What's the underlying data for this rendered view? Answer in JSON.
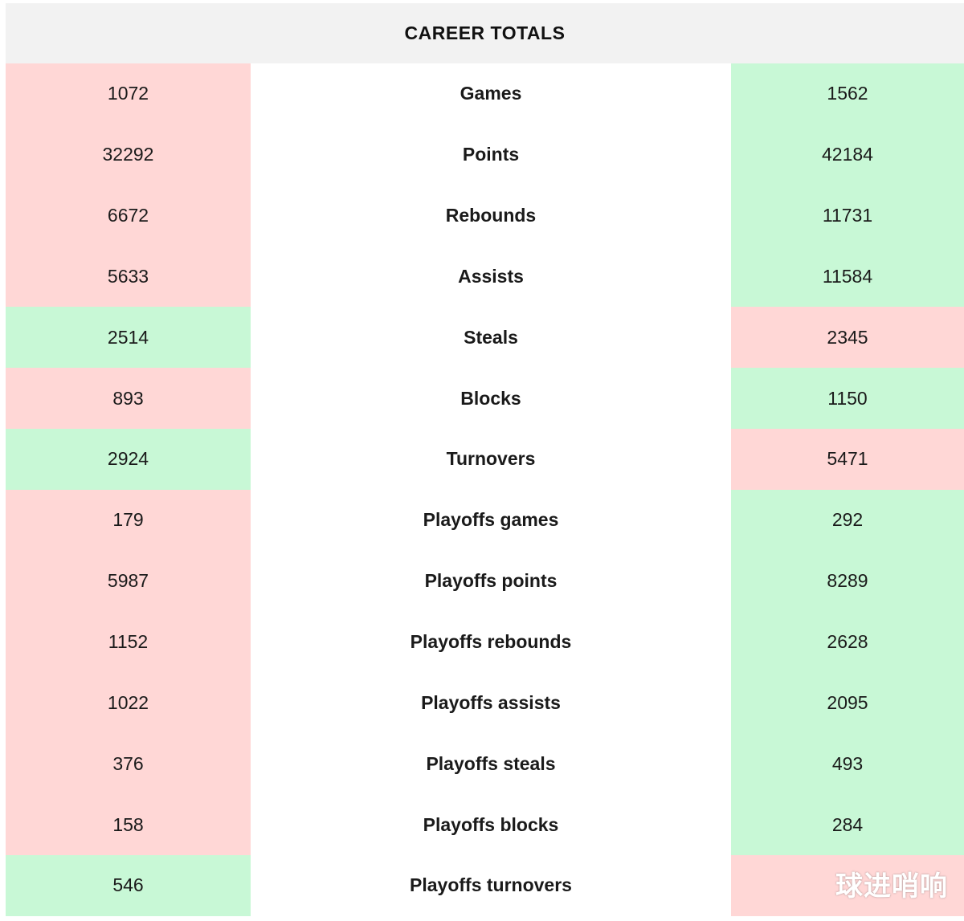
{
  "header": {
    "title": "CAREER TOTALS"
  },
  "colors": {
    "lower": "#ffd7d6",
    "higher": "#c8f8d6",
    "header_bg": "#f2f2f2"
  },
  "rows": [
    {
      "stat": "Games",
      "left": "1072",
      "right": "1562",
      "left_status": "lose",
      "right_status": "win"
    },
    {
      "stat": "Points",
      "left": "32292",
      "right": "42184",
      "left_status": "lose",
      "right_status": "win"
    },
    {
      "stat": "Rebounds",
      "left": "6672",
      "right": "11731",
      "left_status": "lose",
      "right_status": "win"
    },
    {
      "stat": "Assists",
      "left": "5633",
      "right": "11584",
      "left_status": "lose",
      "right_status": "win"
    },
    {
      "stat": "Steals",
      "left": "2514",
      "right": "2345",
      "left_status": "win",
      "right_status": "lose"
    },
    {
      "stat": "Blocks",
      "left": "893",
      "right": "1150",
      "left_status": "lose",
      "right_status": "win"
    },
    {
      "stat": "Turnovers",
      "left": "2924",
      "right": "5471",
      "left_status": "win",
      "right_status": "lose"
    },
    {
      "stat": "Playoffs games",
      "left": "179",
      "right": "292",
      "left_status": "lose",
      "right_status": "win"
    },
    {
      "stat": "Playoffs points",
      "left": "5987",
      "right": "8289",
      "left_status": "lose",
      "right_status": "win"
    },
    {
      "stat": "Playoffs rebounds",
      "left": "1152",
      "right": "2628",
      "left_status": "lose",
      "right_status": "win"
    },
    {
      "stat": "Playoffs assists",
      "left": "1022",
      "right": "2095",
      "left_status": "lose",
      "right_status": "win"
    },
    {
      "stat": "Playoffs steals",
      "left": "376",
      "right": "493",
      "left_status": "lose",
      "right_status": "win"
    },
    {
      "stat": "Playoffs blocks",
      "left": "158",
      "right": "284",
      "left_status": "lose",
      "right_status": "win"
    },
    {
      "stat": "Playoffs turnovers",
      "left": "546",
      "right": "",
      "left_status": "win",
      "right_status": "lose"
    }
  ],
  "watermark": {
    "text": "球进哨响"
  }
}
